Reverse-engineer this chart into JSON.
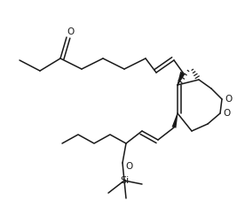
{
  "bg": "#ffffff",
  "lc": "#1a1a1a",
  "lw": 1.1,
  "figsize": [
    2.67,
    2.44
  ],
  "dpi": 100,
  "xlim": [
    0,
    267
  ],
  "ylim": [
    0,
    244
  ]
}
